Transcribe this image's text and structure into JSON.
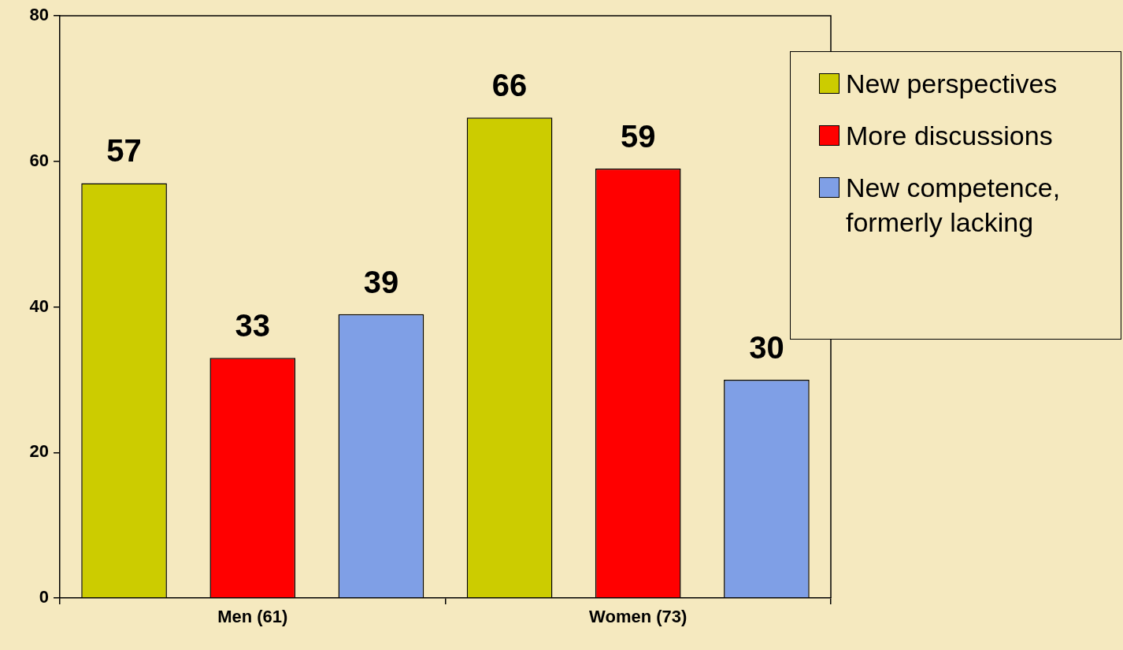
{
  "chart_data": {
    "type": "bar",
    "categories": [
      "Men (61)",
      "Women (73)"
    ],
    "series": [
      {
        "name": "New perspectives",
        "color": "#cccc00",
        "values": [
          57,
          66
        ]
      },
      {
        "name": "More discussions",
        "color": "#ff0000",
        "values": [
          33,
          59
        ]
      },
      {
        "name": "New competence, formerly lacking",
        "color": "#7f9fe6",
        "values": [
          39,
          30
        ]
      }
    ],
    "ylim": [
      0,
      80
    ],
    "yticks": [
      0,
      20,
      40,
      60,
      80
    ],
    "grid": false,
    "legend": "right",
    "data_labels": true
  }
}
